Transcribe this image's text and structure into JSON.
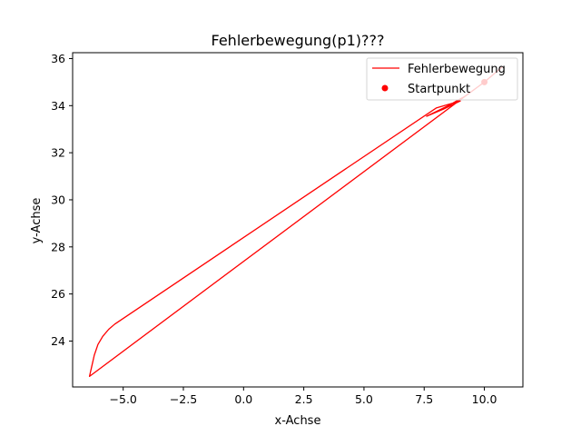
{
  "chart_data": {
    "type": "line",
    "title": "Fehlerbewegung(p1)???",
    "xlabel": "x-Achse",
    "ylabel": "y-Achse",
    "xlim": [
      -7.1,
      11.6
    ],
    "ylim": [
      22.05,
      36.25
    ],
    "xticks": [
      -5.0,
      -2.5,
      0.0,
      2.5,
      5.0,
      7.5,
      10.0
    ],
    "xtick_labels": [
      "−5.0",
      "−2.5",
      "0.0",
      "2.5",
      "5.0",
      "7.5",
      "10.0"
    ],
    "yticks": [
      24,
      26,
      28,
      30,
      32,
      34,
      36
    ],
    "ytick_labels": [
      "24",
      "26",
      "28",
      "30",
      "32",
      "34",
      "36"
    ],
    "grid": false,
    "legend_position": "top-right",
    "series": [
      {
        "name": "Fehlerbewegung",
        "kind": "line",
        "color": "#ff0000",
        "points": [
          [
            10.0,
            35.0
          ],
          [
            10.75,
            35.65
          ],
          [
            10.0,
            35.0
          ],
          [
            9.2,
            34.4
          ],
          [
            8.5,
            34.0
          ],
          [
            7.6,
            33.55
          ],
          [
            8.3,
            33.85
          ],
          [
            9.0,
            34.2
          ],
          [
            8.0,
            33.9
          ],
          [
            -5.35,
            24.72
          ],
          [
            -5.6,
            24.5
          ],
          [
            -5.85,
            24.2
          ],
          [
            -6.05,
            23.85
          ],
          [
            -6.2,
            23.4
          ],
          [
            -6.3,
            22.95
          ],
          [
            -6.4,
            22.5
          ],
          [
            9.2,
            34.4
          ],
          [
            10.0,
            35.0
          ]
        ]
      },
      {
        "name": "Startpunkt",
        "kind": "scatter",
        "color": "#ff0000",
        "points": [
          [
            10.0,
            35.0
          ]
        ]
      }
    ]
  }
}
